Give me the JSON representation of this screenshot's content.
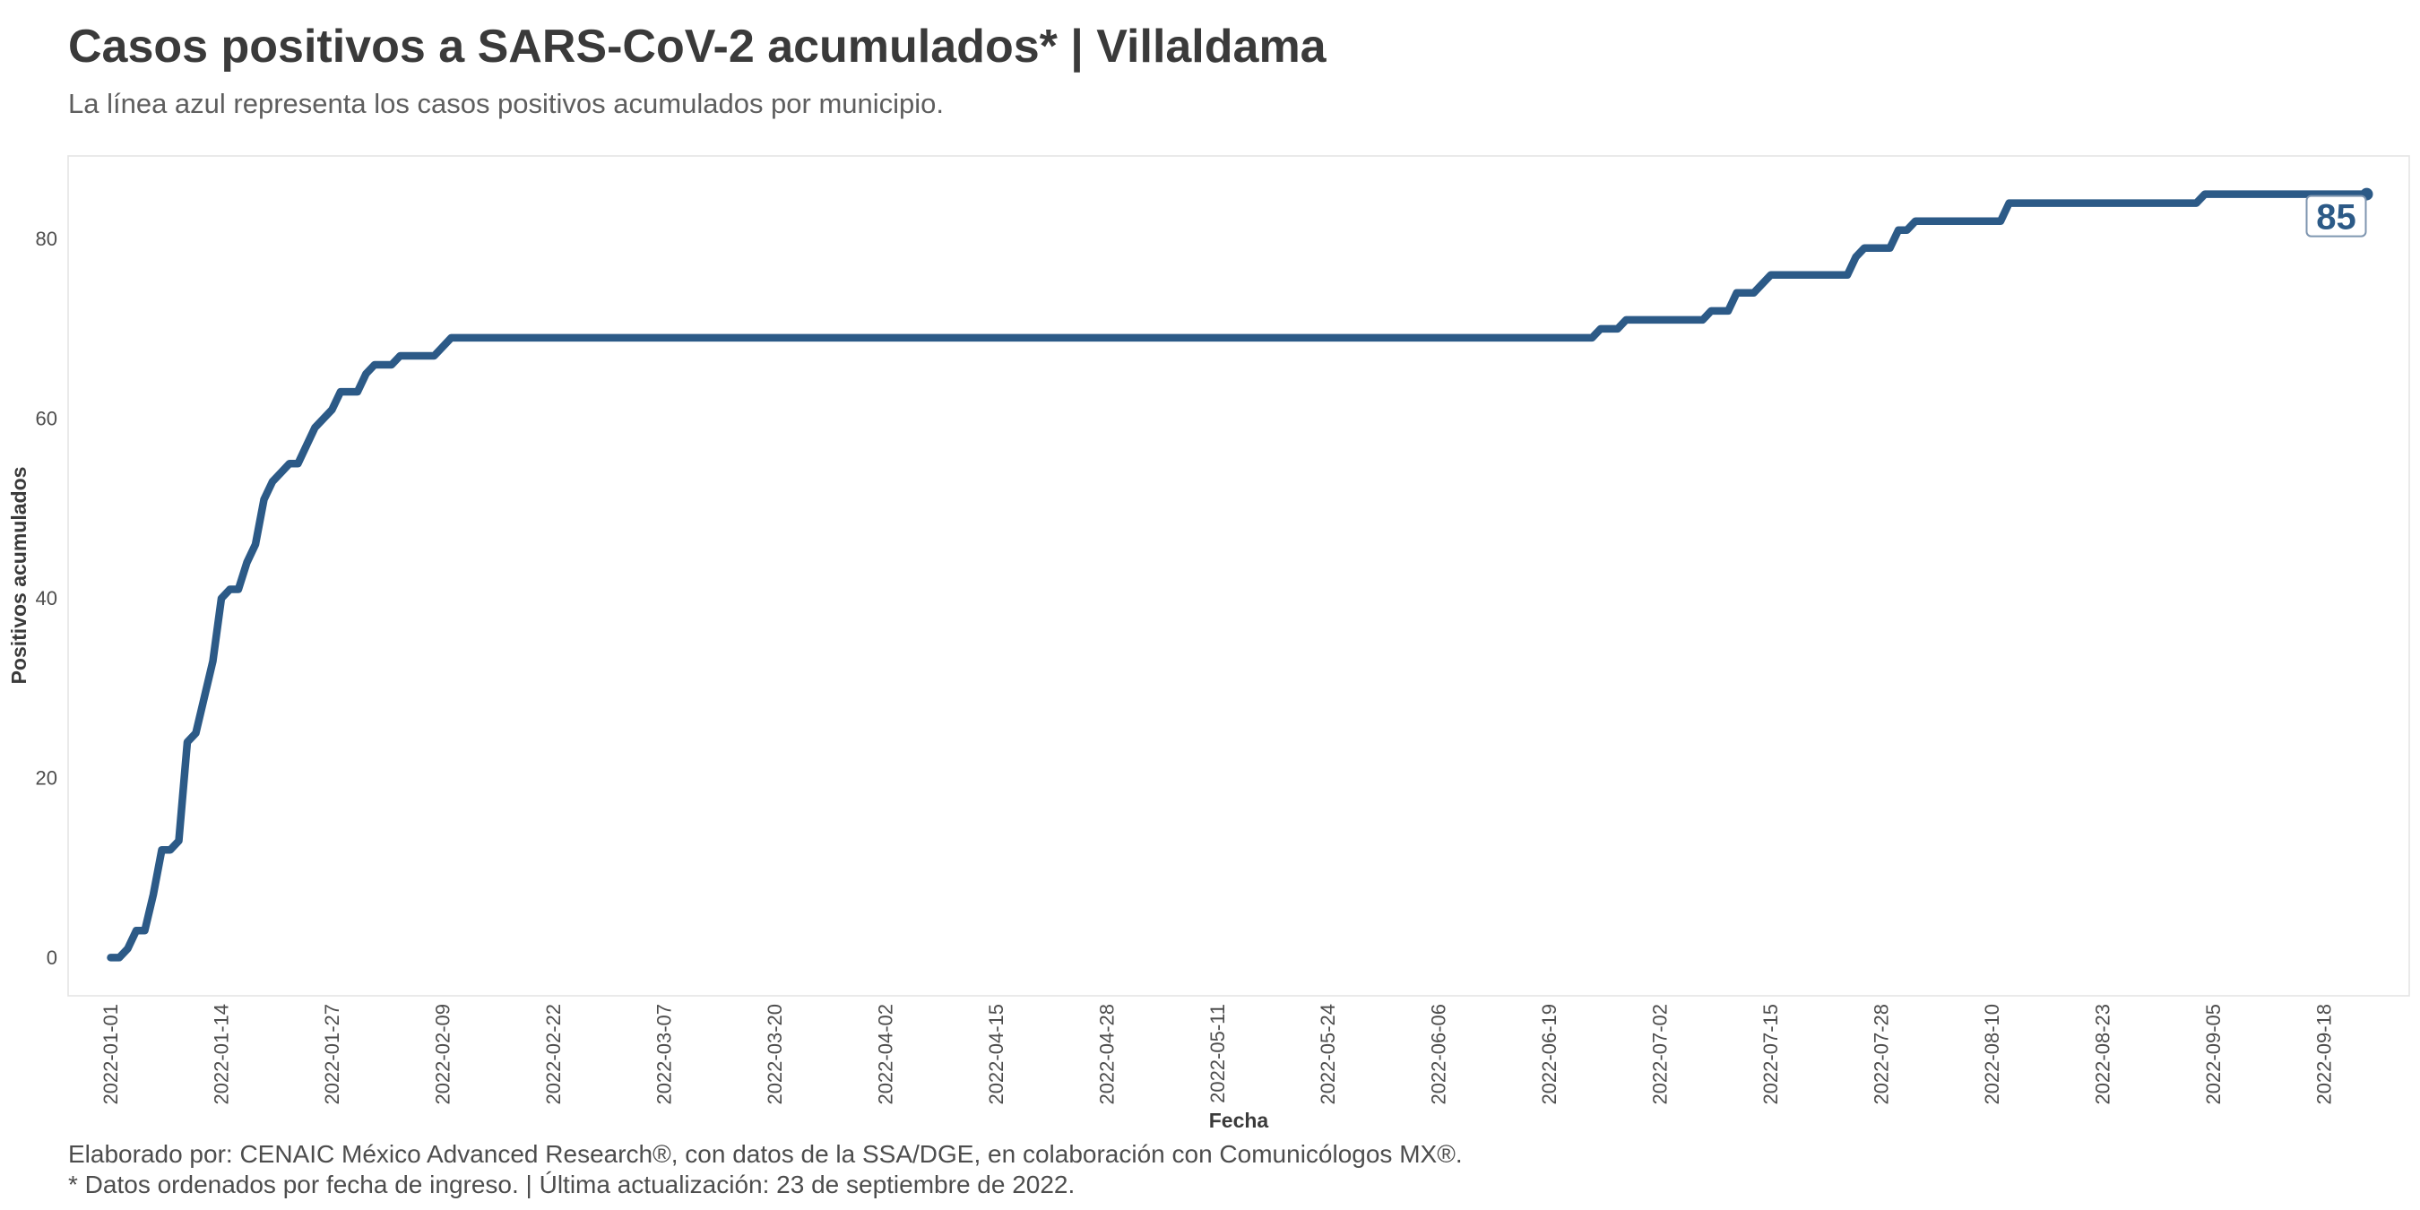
{
  "chart_data": {
    "type": "line",
    "title": "Casos positivos a SARS-CoV-2 acumulados* | Villaldama",
    "subtitle": "La línea azul representa los casos positivos acumulados por municipio.",
    "xlabel": "Fecha",
    "ylabel": "Positivos acumulados",
    "x_ticks": [
      "2022-01-01",
      "2022-01-14",
      "2022-01-27",
      "2022-02-09",
      "2022-02-22",
      "2022-03-07",
      "2022-03-20",
      "2022-04-02",
      "2022-04-15",
      "2022-04-28",
      "2022-05-11",
      "2022-05-24",
      "2022-06-06",
      "2022-06-19",
      "2022-07-02",
      "2022-07-15",
      "2022-07-28",
      "2022-08-10",
      "2022-08-23",
      "2022-09-05",
      "2022-09-18"
    ],
    "y_ticks": [
      0,
      20,
      40,
      60,
      80
    ],
    "xlim": [
      "2021-12-27",
      "2022-09-28"
    ],
    "ylim": [
      -4.25,
      89.25
    ],
    "grid": false,
    "legend": "none",
    "end_label": "85",
    "series": [
      {
        "x": [
          "2022-01-01",
          "2022-01-02",
          "2022-01-03",
          "2022-01-04",
          "2022-01-05",
          "2022-01-06",
          "2022-01-07",
          "2022-01-08",
          "2022-01-09",
          "2022-01-10",
          "2022-01-11",
          "2022-01-12",
          "2022-01-13",
          "2022-01-14",
          "2022-01-15",
          "2022-01-16",
          "2022-01-17",
          "2022-01-18",
          "2022-01-19",
          "2022-01-20",
          "2022-01-21",
          "2022-01-22",
          "2022-01-23",
          "2022-01-24",
          "2022-01-25",
          "2022-01-26",
          "2022-01-27",
          "2022-01-28",
          "2022-01-29",
          "2022-01-30",
          "2022-01-31",
          "2022-02-01",
          "2022-02-02",
          "2022-02-03",
          "2022-02-04",
          "2022-02-08",
          "2022-02-09",
          "2022-02-10",
          "2022-06-24",
          "2022-06-25",
          "2022-06-27",
          "2022-06-28",
          "2022-07-07",
          "2022-07-08",
          "2022-07-10",
          "2022-07-11",
          "2022-07-13",
          "2022-07-14",
          "2022-07-15",
          "2022-07-24",
          "2022-07-25",
          "2022-07-26",
          "2022-07-29",
          "2022-07-30",
          "2022-07-31",
          "2022-08-01",
          "2022-08-11",
          "2022-08-12",
          "2022-09-03",
          "2022-09-04",
          "2022-09-23"
        ],
        "y": [
          0,
          0,
          1,
          3,
          3,
          7,
          12,
          12,
          13,
          24,
          25,
          29,
          33,
          40,
          41,
          41,
          44,
          46,
          51,
          53,
          54,
          55,
          55,
          57,
          59,
          60,
          61,
          63,
          63,
          63,
          65,
          66,
          66,
          66,
          67,
          67,
          68,
          69,
          69,
          70,
          70,
          71,
          71,
          72,
          72,
          74,
          74,
          75,
          76,
          76,
          78,
          79,
          79,
          81,
          81,
          82,
          82,
          84,
          84,
          85,
          85
        ]
      }
    ],
    "caption": [
      "Elaborado por: CENAIC México Advanced Research®, con datos de la SSA/DGE, en colaboración con Comunicólogos MX®.",
      "* Datos ordenados por fecha de ingreso. | Última actualización: 23 de septiembre de 2022."
    ]
  },
  "colors": {
    "line": "#2c5a87",
    "title": "#3a3a3a",
    "subtitle": "#5e5e5e",
    "axis_text": "#4d4d4d",
    "panel_border": "#e4e4e4"
  }
}
